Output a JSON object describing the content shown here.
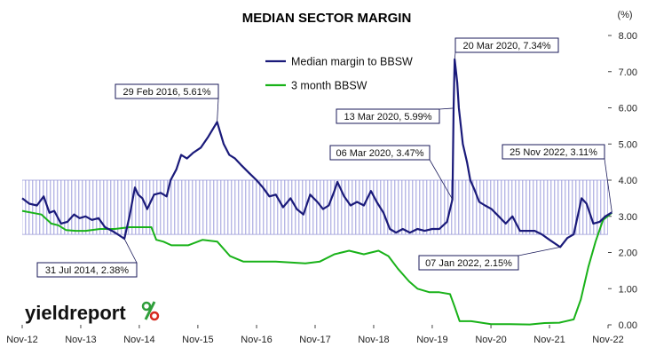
{
  "chart_data": {
    "type": "line",
    "title": "MEDIAN SECTOR MARGIN",
    "ylabel": "(%)",
    "ylim": [
      0,
      8
    ],
    "yticks": [
      "0.00",
      "1.00",
      "2.00",
      "3.00",
      "4.00",
      "5.00",
      "6.00",
      "7.00",
      "8.00"
    ],
    "xlim": [
      "2012-11",
      "2022-11"
    ],
    "xticks": [
      "Nov-12",
      "Nov-13",
      "Nov-14",
      "Nov-15",
      "Nov-16",
      "Nov-17",
      "Nov-18",
      "Nov-19",
      "Nov-20",
      "Nov-21",
      "Nov-22"
    ],
    "legend_position": "top-center",
    "band": {
      "y_low": 2.5,
      "y_high": 4.0
    },
    "series": [
      {
        "name": "Median margin to BBSW",
        "color": "#1a1a7a",
        "points": [
          [
            "2012-11-01",
            3.5
          ],
          [
            "2012-12-15",
            3.35
          ],
          [
            "2013-02-01",
            3.3
          ],
          [
            "2013-03-15",
            3.55
          ],
          [
            "2013-04-20",
            3.1
          ],
          [
            "2013-05-20",
            3.15
          ],
          [
            "2013-07-01",
            2.8
          ],
          [
            "2013-08-10",
            2.85
          ],
          [
            "2013-09-20",
            3.05
          ],
          [
            "2013-10-25",
            2.95
          ],
          [
            "2013-12-01",
            3.0
          ],
          [
            "2014-01-10",
            2.9
          ],
          [
            "2014-02-20",
            2.95
          ],
          [
            "2014-04-01",
            2.7
          ],
          [
            "2014-05-15",
            2.6
          ],
          [
            "2014-06-20",
            2.5
          ],
          [
            "2014-07-31",
            2.38
          ],
          [
            "2014-09-01",
            3.0
          ],
          [
            "2014-10-05",
            3.8
          ],
          [
            "2014-10-25",
            3.6
          ],
          [
            "2014-11-20",
            3.5
          ],
          [
            "2014-12-20",
            3.2
          ],
          [
            "2015-02-01",
            3.6
          ],
          [
            "2015-03-15",
            3.65
          ],
          [
            "2015-04-20",
            3.55
          ],
          [
            "2015-05-15",
            4.0
          ],
          [
            "2015-06-20",
            4.3
          ],
          [
            "2015-07-20",
            4.7
          ],
          [
            "2015-08-25",
            4.6
          ],
          [
            "2015-10-01",
            4.75
          ],
          [
            "2015-11-20",
            4.9
          ],
          [
            "2016-01-05",
            5.2
          ],
          [
            "2016-02-29",
            5.61
          ],
          [
            "2016-04-10",
            5.0
          ],
          [
            "2016-05-15",
            4.7
          ],
          [
            "2016-06-20",
            4.6
          ],
          [
            "2016-08-01",
            4.4
          ],
          [
            "2016-09-15",
            4.2
          ],
          [
            "2016-11-01",
            4.0
          ],
          [
            "2016-12-10",
            3.8
          ],
          [
            "2017-01-20",
            3.55
          ],
          [
            "2017-03-01",
            3.6
          ],
          [
            "2017-04-15",
            3.25
          ],
          [
            "2017-06-01",
            3.5
          ],
          [
            "2017-07-10",
            3.2
          ],
          [
            "2017-08-20",
            3.05
          ],
          [
            "2017-10-01",
            3.6
          ],
          [
            "2017-11-15",
            3.4
          ],
          [
            "2017-12-20",
            3.2
          ],
          [
            "2018-01-25",
            3.3
          ],
          [
            "2018-03-01",
            3.7
          ],
          [
            "2018-03-20",
            3.95
          ],
          [
            "2018-05-01",
            3.55
          ],
          [
            "2018-06-10",
            3.3
          ],
          [
            "2018-07-20",
            3.4
          ],
          [
            "2018-09-01",
            3.3
          ],
          [
            "2018-10-15",
            3.7
          ],
          [
            "2018-11-20",
            3.4
          ],
          [
            "2019-01-01",
            3.1
          ],
          [
            "2019-02-10",
            2.65
          ],
          [
            "2019-03-20",
            2.55
          ],
          [
            "2019-05-01",
            2.65
          ],
          [
            "2019-06-15",
            2.55
          ],
          [
            "2019-08-01",
            2.65
          ],
          [
            "2019-09-15",
            2.6
          ],
          [
            "2019-11-01",
            2.65
          ],
          [
            "2019-12-15",
            2.65
          ],
          [
            "2020-02-01",
            2.85
          ],
          [
            "2020-03-06",
            3.47
          ],
          [
            "2020-03-13",
            5.99
          ],
          [
            "2020-03-20",
            7.34
          ],
          [
            "2020-04-05",
            6.7
          ],
          [
            "2020-04-15",
            6.0
          ],
          [
            "2020-05-10",
            5.0
          ],
          [
            "2020-06-05",
            4.5
          ],
          [
            "2020-06-25",
            4.0
          ],
          [
            "2020-07-20",
            3.75
          ],
          [
            "2020-08-20",
            3.4
          ],
          [
            "2020-09-25",
            3.3
          ],
          [
            "2020-11-05",
            3.2
          ],
          [
            "2020-12-20",
            3.0
          ],
          [
            "2021-02-01",
            2.8
          ],
          [
            "2021-03-15",
            3.0
          ],
          [
            "2021-05-01",
            2.6
          ],
          [
            "2021-06-20",
            2.6
          ],
          [
            "2021-08-01",
            2.6
          ],
          [
            "2021-09-15",
            2.5
          ],
          [
            "2021-11-01",
            2.35
          ],
          [
            "2022-01-07",
            2.15
          ],
          [
            "2022-02-20",
            2.4
          ],
          [
            "2022-04-01",
            2.5
          ],
          [
            "2022-05-20",
            3.5
          ],
          [
            "2022-06-20",
            3.35
          ],
          [
            "2022-08-01",
            2.8
          ],
          [
            "2022-09-10",
            2.85
          ],
          [
            "2022-10-15",
            3.0
          ],
          [
            "2022-11-25",
            3.11
          ]
        ]
      },
      {
        "name": "3 month BBSW",
        "color": "#19b219",
        "points": [
          [
            "2012-11-01",
            3.15
          ],
          [
            "2013-01-01",
            3.1
          ],
          [
            "2013-03-01",
            3.05
          ],
          [
            "2013-05-01",
            2.8
          ],
          [
            "2013-06-15",
            2.75
          ],
          [
            "2013-08-01",
            2.62
          ],
          [
            "2013-10-01",
            2.6
          ],
          [
            "2013-12-01",
            2.6
          ],
          [
            "2014-03-01",
            2.65
          ],
          [
            "2014-06-01",
            2.65
          ],
          [
            "2014-09-01",
            2.7
          ],
          [
            "2014-12-01",
            2.7
          ],
          [
            "2015-01-15",
            2.7
          ],
          [
            "2015-02-15",
            2.35
          ],
          [
            "2015-04-01",
            2.3
          ],
          [
            "2015-05-20",
            2.2
          ],
          [
            "2015-09-01",
            2.2
          ],
          [
            "2015-12-01",
            2.35
          ],
          [
            "2016-03-01",
            2.3
          ],
          [
            "2016-05-20",
            1.9
          ],
          [
            "2016-08-10",
            1.75
          ],
          [
            "2016-11-01",
            1.75
          ],
          [
            "2017-03-01",
            1.75
          ],
          [
            "2017-09-01",
            1.7
          ],
          [
            "2017-12-01",
            1.75
          ],
          [
            "2018-03-01",
            1.95
          ],
          [
            "2018-06-01",
            2.05
          ],
          [
            "2018-09-01",
            1.95
          ],
          [
            "2018-12-01",
            2.05
          ],
          [
            "2019-02-01",
            1.9
          ],
          [
            "2019-04-01",
            1.55
          ],
          [
            "2019-06-10",
            1.2
          ],
          [
            "2019-08-01",
            1.0
          ],
          [
            "2019-10-15",
            0.9
          ],
          [
            "2019-12-15",
            0.9
          ],
          [
            "2020-02-20",
            0.85
          ],
          [
            "2020-03-20",
            0.5
          ],
          [
            "2020-04-20",
            0.1
          ],
          [
            "2020-07-01",
            0.1
          ],
          [
            "2020-11-01",
            0.02
          ],
          [
            "2021-03-01",
            0.02
          ],
          [
            "2021-07-01",
            0.01
          ],
          [
            "2021-10-01",
            0.05
          ],
          [
            "2022-01-01",
            0.06
          ],
          [
            "2022-04-01",
            0.15
          ],
          [
            "2022-05-15",
            0.7
          ],
          [
            "2022-07-01",
            1.6
          ],
          [
            "2022-08-15",
            2.3
          ],
          [
            "2022-10-01",
            2.9
          ],
          [
            "2022-11-25",
            3.1
          ]
        ]
      }
    ],
    "annotations": [
      {
        "text": "20 Mar 2020,  7.34%",
        "date": "2020-03-20",
        "value": 7.34
      },
      {
        "text": "29 Feb 2016,  5.61%",
        "date": "2016-02-29",
        "value": 5.61
      },
      {
        "text": "13 Mar 2020,  5.99%",
        "date": "2020-03-13",
        "value": 5.99
      },
      {
        "text": "06 Mar 2020,  3.47%",
        "date": "2020-03-06",
        "value": 3.47
      },
      {
        "text": "25 Nov 2022,  3.11%",
        "date": "2022-11-25",
        "value": 3.11
      },
      {
        "text": "31 Jul 2014,  2.38%",
        "date": "2014-07-31",
        "value": 2.38
      },
      {
        "text": "07 Jan 2022,  2.15%",
        "date": "2022-01-07",
        "value": 2.15
      }
    ],
    "logo": {
      "text": "yieldreport",
      "symbol": "%",
      "symbol_colors": [
        "#2e9e3a",
        "#d62a1f"
      ]
    }
  }
}
